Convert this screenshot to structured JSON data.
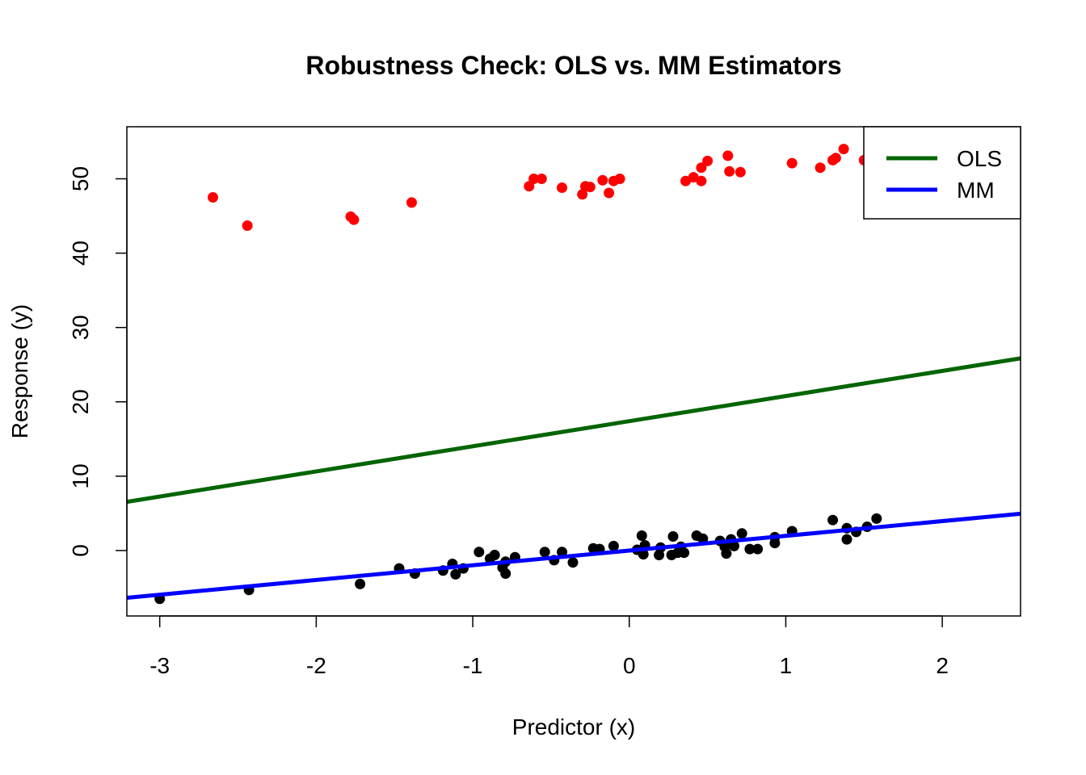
{
  "chart_data": {
    "type": "scatter",
    "title": "Robustness Check: OLS vs. MM Estimators",
    "xlabel": "Predictor (x)",
    "ylabel": "Response (y)",
    "xlim": [
      -3.21,
      2.5
    ],
    "ylim": [
      -8.8,
      57.0
    ],
    "x_ticks": [
      -3,
      -2,
      -1,
      0,
      1,
      2
    ],
    "x_tick_labels": [
      "-3",
      "-2",
      "-1",
      "0",
      "1",
      "2"
    ],
    "y_ticks": [
      0,
      10,
      20,
      30,
      40,
      50
    ],
    "y_tick_labels": [
      "0",
      "10",
      "20",
      "30",
      "40",
      "50"
    ],
    "grid": false,
    "legend_position": "top-right",
    "series": [
      {
        "kind": "points",
        "color": "#000000",
        "points": [
          [
            -3.0,
            -6.5
          ],
          [
            -2.43,
            -5.3
          ],
          [
            -1.72,
            -4.5
          ],
          [
            -1.47,
            -2.4
          ],
          [
            -1.37,
            -3.1
          ],
          [
            -1.19,
            -2.7
          ],
          [
            -1.13,
            -1.8
          ],
          [
            -1.11,
            -3.2
          ],
          [
            -1.06,
            -2.4
          ],
          [
            -0.96,
            -0.2
          ],
          [
            -0.89,
            -1.1
          ],
          [
            -0.86,
            -0.6
          ],
          [
            -0.81,
            -2.3
          ],
          [
            -0.79,
            -1.5
          ],
          [
            -0.79,
            -3.1
          ],
          [
            -0.73,
            -0.9
          ],
          [
            -0.54,
            -0.2
          ],
          [
            -0.48,
            -1.3
          ],
          [
            -0.43,
            -0.2
          ],
          [
            -0.36,
            -1.6
          ],
          [
            -0.23,
            0.3
          ],
          [
            -0.19,
            0.2
          ],
          [
            -0.1,
            0.6
          ],
          [
            0.05,
            0.1
          ],
          [
            0.08,
            2.0
          ],
          [
            0.09,
            -0.5
          ],
          [
            0.1,
            0.7
          ],
          [
            0.19,
            -0.6
          ],
          [
            0.2,
            0.4
          ],
          [
            0.27,
            -0.6
          ],
          [
            0.28,
            1.9
          ],
          [
            0.31,
            -0.3
          ],
          [
            0.33,
            0.5
          ],
          [
            0.35,
            -0.3
          ],
          [
            0.43,
            2.0
          ],
          [
            0.47,
            1.6
          ],
          [
            0.58,
            1.3
          ],
          [
            0.61,
            0.5
          ],
          [
            0.62,
            -0.4
          ],
          [
            0.65,
            1.5
          ],
          [
            0.67,
            0.6
          ],
          [
            0.72,
            2.3
          ],
          [
            0.77,
            0.2
          ],
          [
            0.82,
            0.2
          ],
          [
            0.93,
            1.8
          ],
          [
            0.93,
            1.0
          ],
          [
            1.04,
            2.6
          ],
          [
            1.3,
            4.1
          ],
          [
            1.39,
            3.0
          ],
          [
            1.39,
            1.5
          ],
          [
            1.45,
            2.5
          ],
          [
            1.52,
            3.2
          ],
          [
            1.58,
            4.3
          ]
        ]
      },
      {
        "kind": "points",
        "color": "#ff0000",
        "points": [
          [
            -2.66,
            47.5
          ],
          [
            -2.44,
            43.7
          ],
          [
            -1.78,
            44.9
          ],
          [
            -1.76,
            44.5
          ],
          [
            -1.39,
            46.8
          ],
          [
            -0.64,
            49.0
          ],
          [
            -0.61,
            50.0
          ],
          [
            -0.56,
            50.0
          ],
          [
            -0.43,
            48.8
          ],
          [
            -0.3,
            47.9
          ],
          [
            -0.28,
            49.0
          ],
          [
            -0.25,
            48.9
          ],
          [
            -0.17,
            49.8
          ],
          [
            -0.13,
            48.1
          ],
          [
            -0.1,
            49.7
          ],
          [
            -0.06,
            50.0
          ],
          [
            0.36,
            49.7
          ],
          [
            0.41,
            50.2
          ],
          [
            0.46,
            51.5
          ],
          [
            0.46,
            49.7
          ],
          [
            0.5,
            52.4
          ],
          [
            0.63,
            53.1
          ],
          [
            0.64,
            51.0
          ],
          [
            0.71,
            50.9
          ],
          [
            1.04,
            52.1
          ],
          [
            1.22,
            51.5
          ],
          [
            1.3,
            52.5
          ],
          [
            1.32,
            52.8
          ],
          [
            1.37,
            54.0
          ],
          [
            1.5,
            52.5
          ]
        ]
      },
      {
        "kind": "line",
        "name": "OLS",
        "color": "#006400",
        "intercept": 17.4,
        "slope": 3.38
      },
      {
        "kind": "line",
        "name": "MM",
        "color": "#0000ff",
        "intercept": 0.0,
        "slope": 1.98
      }
    ]
  }
}
